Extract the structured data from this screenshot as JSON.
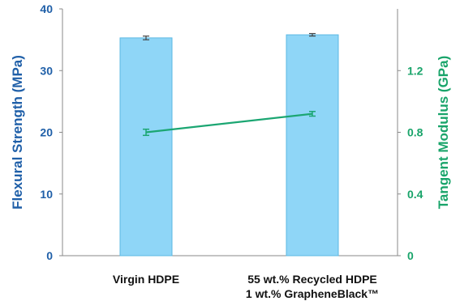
{
  "chart_data": {
    "type": "bar",
    "categories": [
      [
        "Virgin HDPE"
      ],
      [
        "55 wt.% Recycled HDPE",
        "1 wt.% GrapheneBlack™"
      ]
    ],
    "series": [
      {
        "name": "Flexural Strength",
        "type": "bar",
        "axis": "left",
        "values": [
          35.3,
          35.8
        ],
        "errors": [
          0.3,
          0.2
        ]
      },
      {
        "name": "Tangent Modulus",
        "type": "line",
        "axis": "right",
        "values": [
          0.8,
          0.92
        ],
        "errors": [
          0.02,
          0.015
        ]
      }
    ],
    "ylabel": "Flexural Strength (MPa)",
    "y2label": "Tangent Modulus (GPa)",
    "ylim": [
      0,
      40
    ],
    "y2lim": [
      0,
      1.6
    ],
    "yticks": [
      "0",
      "10",
      "20",
      "30",
      "40"
    ],
    "y2ticks": [
      "0",
      "0.4",
      "0.8",
      "1.2"
    ],
    "grid": false,
    "colors": {
      "bar_fill": "#8fd6f7",
      "bar_stroke": "#5bb8e3",
      "line": "#1ba672",
      "left_axis": "#1f5fa8",
      "right_axis": "#19a46a"
    }
  }
}
